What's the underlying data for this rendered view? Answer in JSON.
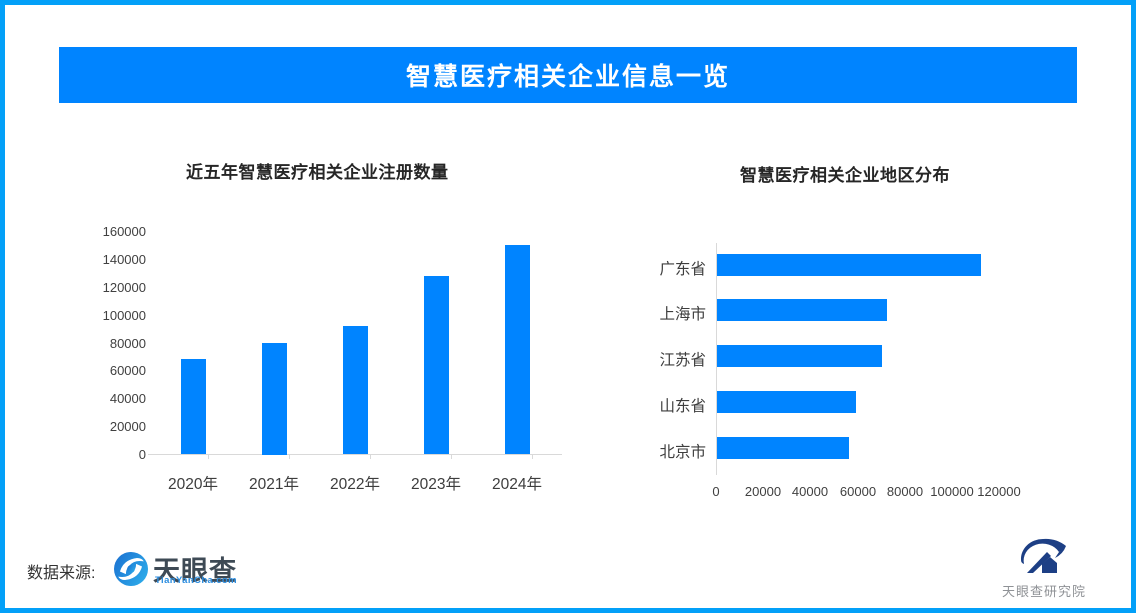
{
  "page": {
    "border_color": "#03a0f8",
    "background": "#ffffff"
  },
  "header": {
    "title": "智慧医疗相关企业信息一览",
    "bg_color": "#0084ff",
    "text_color": "#ffffff"
  },
  "chart_data": [
    {
      "type": "bar",
      "orientation": "vertical",
      "title": "近五年智慧医疗相关企业注册数量",
      "categories": [
        "2020年",
        "2021年",
        "2022年",
        "2023年",
        "2024年"
      ],
      "values": [
        68000,
        80000,
        92000,
        128000,
        150000
      ],
      "ylabel": "",
      "xlabel": "",
      "ylim": [
        0,
        160000
      ],
      "ytick_step": 20000,
      "yticks": [
        "0",
        "20000",
        "40000",
        "60000",
        "80000",
        "100000",
        "120000",
        "140000",
        "160000"
      ],
      "bar_color": "#0084ff",
      "grid": false,
      "legend": "none"
    },
    {
      "type": "bar",
      "orientation": "horizontal",
      "title": "智慧医疗相关企业地区分布",
      "categories": [
        "广东省",
        "上海市",
        "江苏省",
        "山东省",
        "北京市"
      ],
      "values": [
        112000,
        72000,
        70000,
        59000,
        56000
      ],
      "ylabel": "",
      "xlabel": "",
      "xlim": [
        0,
        120000
      ],
      "xtick_step": 20000,
      "xticks": [
        "0",
        "20000",
        "40000",
        "60000",
        "80000",
        "100000",
        "120000"
      ],
      "bar_color": "#0084ff",
      "grid": false,
      "legend": "none"
    }
  ],
  "footer": {
    "source_label": "数据来源:",
    "tianyancha": {
      "name": "天眼查",
      "domain": "TianYanCha.com",
      "brand_blue": "#2b8de0",
      "name_color": "#3e4a55"
    },
    "institute": {
      "name": "天眼查研究院",
      "mark_color": "#1d3f85",
      "text_color": "#8f9296"
    }
  }
}
